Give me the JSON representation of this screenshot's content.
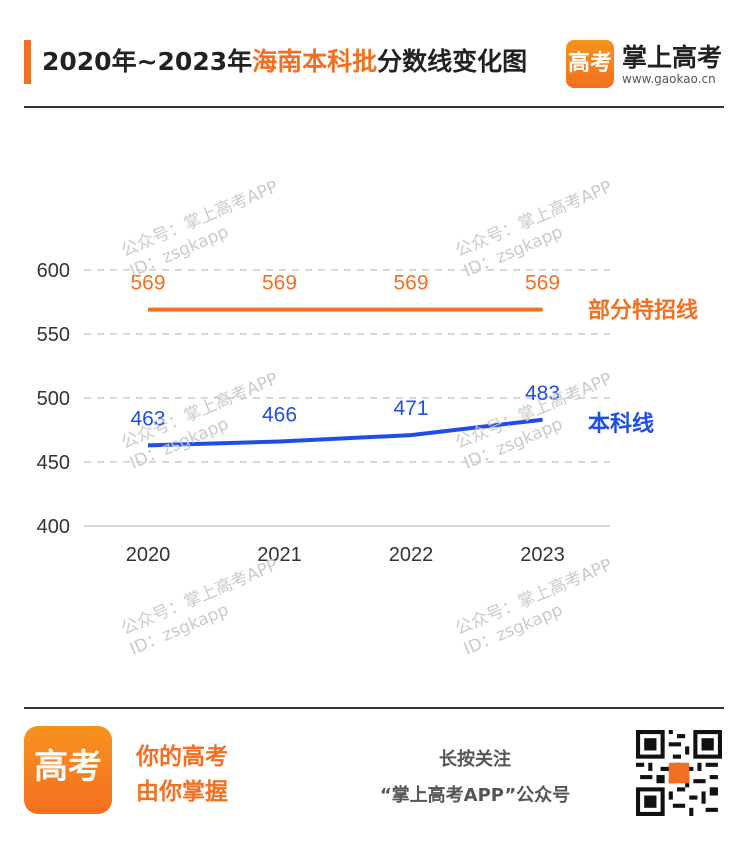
{
  "header": {
    "title_prefix": "2020年~2023年",
    "title_accent": "海南本科批",
    "title_suffix": "分数线变化图",
    "brand_logo_text": "高考",
    "brand_name": "掌上高考",
    "brand_url": "www.gaokao.cn"
  },
  "watermark": {
    "line1": "公众号：掌上高考APP",
    "line2": "ID：zsgkapp"
  },
  "chart_data": {
    "type": "line",
    "x": [
      "2020",
      "2021",
      "2022",
      "2023"
    ],
    "ylim": [
      400,
      600
    ],
    "yticks": [
      400,
      450,
      500,
      550,
      600
    ],
    "grid": true,
    "legend_position": "right",
    "series": [
      {
        "name": "部分特招线",
        "values": [
          569,
          569,
          569,
          569
        ],
        "color": "#f36f21"
      },
      {
        "name": "本科线",
        "values": [
          463,
          466,
          471,
          483
        ],
        "color": "#1f4de8"
      }
    ]
  },
  "footer": {
    "logo_text": "高考",
    "slogan_line1": "你的高考",
    "slogan_line2": "由你掌握",
    "follow_line1": "长按关注",
    "follow_line2": "“掌上高考APP”公众号"
  },
  "colors": {
    "accent": "#f36f21",
    "blue": "#1f4de8",
    "grid": "#cccccc"
  }
}
